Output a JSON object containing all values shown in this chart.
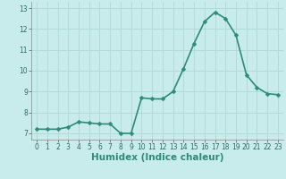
{
  "x": [
    0,
    1,
    2,
    3,
    4,
    5,
    6,
    7,
    8,
    9,
    10,
    11,
    12,
    13,
    14,
    15,
    16,
    17,
    18,
    19,
    20,
    21,
    22,
    23
  ],
  "y": [
    7.2,
    7.2,
    7.2,
    7.3,
    7.55,
    7.5,
    7.45,
    7.45,
    7.0,
    7.0,
    8.7,
    8.65,
    8.65,
    9.0,
    10.1,
    11.3,
    12.35,
    12.8,
    12.5,
    11.7,
    9.8,
    9.2,
    8.9,
    8.85
  ],
  "line_color": "#2e8b7a",
  "marker": "D",
  "marker_size": 2.5,
  "bg_color": "#c8eceb",
  "grid_color": "#aed8d5",
  "xlabel": "Humidex (Indice chaleur)",
  "xlim": [
    -0.5,
    23.5
  ],
  "ylim": [
    6.7,
    13.3
  ],
  "yticks": [
    7,
    8,
    9,
    10,
    11,
    12,
    13
  ],
  "xticks": [
    0,
    1,
    2,
    3,
    4,
    5,
    6,
    7,
    8,
    9,
    10,
    11,
    12,
    13,
    14,
    15,
    16,
    17,
    18,
    19,
    20,
    21,
    22,
    23
  ],
  "tick_fontsize": 5.5,
  "xlabel_fontsize": 7.5,
  "line_width": 1.2
}
